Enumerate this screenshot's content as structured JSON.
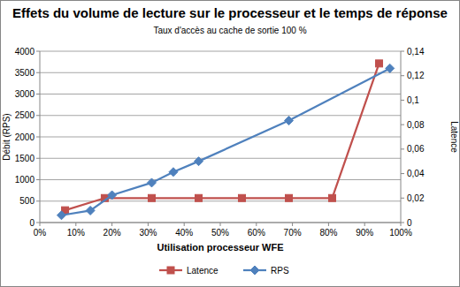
{
  "chart_data": {
    "type": "line",
    "title": "Effets du volume de lecture sur le processeur et le temps de réponse",
    "subtitle": "Taux d'accès au cache de sortie 100 %",
    "x_label": "Utilisation processeur WFE",
    "y_label": "Débit (RPS)",
    "y2_label": "Latence",
    "xlim": [
      0,
      100
    ],
    "xticks": [
      {
        "value": 0,
        "label": "0%"
      },
      {
        "value": 10,
        "label": "10%"
      },
      {
        "value": 20,
        "label": "20%"
      },
      {
        "value": 30,
        "label": "30%"
      },
      {
        "value": 40,
        "label": "40%"
      },
      {
        "value": 50,
        "label": "50%"
      },
      {
        "value": 60,
        "label": "60%"
      },
      {
        "value": 70,
        "label": "70%"
      },
      {
        "value": 80,
        "label": "80%"
      },
      {
        "value": 90,
        "label": "90%"
      },
      {
        "value": 100,
        "label": "100%"
      }
    ],
    "ylim": [
      0,
      4000
    ],
    "yticks": [
      0,
      500,
      1000,
      1500,
      2000,
      2500,
      3000,
      3500,
      4000
    ],
    "y2lim": [
      0,
      0.14
    ],
    "y2ticks": [
      0,
      {
        "value": 0.02,
        "label": "0,02"
      },
      {
        "value": 0.04,
        "label": "0,04"
      },
      {
        "value": 0.06,
        "label": "0,06"
      },
      {
        "value": 0.08,
        "label": "0,08"
      },
      {
        "value": 0.1,
        "label": "0,1"
      },
      {
        "value": 0.12,
        "label": "0,12"
      },
      {
        "value": 0.14,
        "label": "0,14"
      }
    ],
    "grid": true,
    "legend": "bottom",
    "series": [
      {
        "name": "Latence",
        "color": "#c0504d",
        "marker": "square",
        "axis": "y2",
        "x": [
          7,
          18,
          31,
          44,
          56,
          69,
          81,
          94
        ],
        "values": [
          0.01,
          0.02,
          0.02,
          0.02,
          0.02,
          0.02,
          0.02,
          0.13
        ]
      },
      {
        "name": "RPS",
        "color": "#4f81bd",
        "marker": "diamond",
        "x": [
          6,
          14,
          20,
          31,
          37,
          44,
          69,
          97
        ],
        "values": [
          170,
          280,
          640,
          930,
          1180,
          1430,
          2380,
          3600
        ]
      }
    ]
  }
}
